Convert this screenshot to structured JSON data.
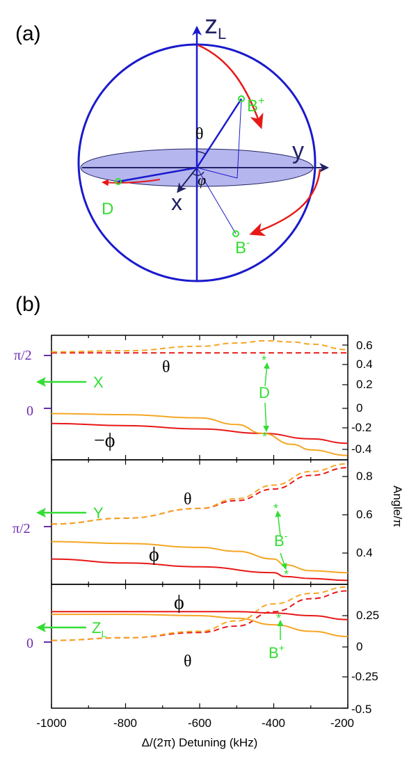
{
  "panel_a": {
    "label": "(a)",
    "axis_z": "z",
    "axis_z_sub": "L",
    "axis_y": "y",
    "axis_x": "x",
    "theta": "θ",
    "phi": "φ",
    "point_bplus": "B",
    "point_bplus_sup": "+",
    "point_bminus": "B",
    "point_bminus_sup": "-",
    "point_d": "D"
  },
  "panel_b": {
    "label": "(b)",
    "xlabel": "Δ/(2π)  Detuning  (kHz)",
    "ylabel_right": "Angle/π",
    "colors": {
      "red": "#e81818",
      "orange": "#f5a623",
      "green": "#33dd33",
      "purple": "#6a2ab0"
    },
    "sub1": {
      "left_pi2": "π/2",
      "left_zero": "0",
      "arrow_label": "X",
      "theta_label": "θ",
      "phi_label": "−ϕ",
      "point_label": "D",
      "right_ticks": [
        "0.6",
        "0.4",
        "0.2",
        "0",
        "-0.2",
        "-0.4"
      ]
    },
    "sub2": {
      "left_pi2": "π/2",
      "arrow_label": "Y",
      "theta_label": "θ",
      "phi_label": "ϕ",
      "point_label": "B",
      "point_label_sup": "-",
      "right_ticks": [
        "0.8",
        "0.6",
        "0.4"
      ]
    },
    "sub3": {
      "left_zero": "0",
      "arrow_label": "Z",
      "arrow_label_sub": "L",
      "theta_label": "θ",
      "phi_label": "ϕ",
      "point_label": "B",
      "point_label_sup": "+",
      "right_ticks": [
        "0.25",
        "0",
        "-0.25",
        "-0.5"
      ]
    },
    "x_ticks": [
      "-1000",
      "-800",
      "-600",
      "-400",
      "-200"
    ]
  },
  "chart_data": [
    {
      "type": "line",
      "xlim": [
        -1000,
        -200
      ],
      "ylim": [
        -0.45,
        0.68
      ],
      "series": [
        {
          "style": "red-dashed",
          "x": [
            -1000,
            -200
          ],
          "y": [
            0.52,
            0.52
          ]
        },
        {
          "style": "orange-dashed",
          "x": [
            -1000,
            -800,
            -600,
            -500,
            -420,
            -350,
            -300,
            -200
          ],
          "y": [
            0.53,
            0.54,
            0.58,
            0.61,
            0.63,
            0.62,
            0.6,
            0.55
          ]
        },
        {
          "style": "red-solid",
          "x": [
            -1000,
            -800,
            -600,
            -430,
            -300,
            -200
          ],
          "y": [
            -0.12,
            -0.14,
            -0.17,
            -0.21,
            -0.26,
            -0.3
          ]
        },
        {
          "style": "orange-solid",
          "x": [
            -1000,
            -800,
            -600,
            -500,
            -430,
            -350,
            -300,
            -200
          ],
          "y": [
            -0.03,
            -0.04,
            -0.07,
            -0.13,
            -0.21,
            -0.31,
            -0.36,
            -0.41
          ]
        }
      ]
    },
    {
      "type": "line",
      "xlim": [
        -1000,
        -200
      ],
      "ylim": [
        0.24,
        0.88
      ],
      "series": [
        {
          "style": "red-dashed",
          "x": [
            -1000,
            -800,
            -600,
            -500,
            -400,
            -300,
            -200
          ],
          "y": [
            0.55,
            0.58,
            0.63,
            0.67,
            0.73,
            0.8,
            0.84
          ]
        },
        {
          "style": "orange-dashed",
          "x": [
            -1000,
            -800,
            -600,
            -500,
            -400,
            -300,
            -200
          ],
          "y": [
            0.55,
            0.58,
            0.63,
            0.68,
            0.75,
            0.82,
            0.86
          ]
        },
        {
          "style": "red-solid",
          "x": [
            -1000,
            -800,
            -600,
            -400,
            -370,
            -300,
            -200
          ],
          "y": [
            0.37,
            0.35,
            0.33,
            0.3,
            0.28,
            0.27,
            0.26
          ]
        },
        {
          "style": "orange-solid",
          "x": [
            -1000,
            -800,
            -600,
            -500,
            -400,
            -370,
            -300,
            -200
          ],
          "y": [
            0.46,
            0.45,
            0.43,
            0.41,
            0.37,
            0.34,
            0.31,
            0.3
          ]
        }
      ]
    },
    {
      "type": "line",
      "xlim": [
        -1000,
        -200
      ],
      "ylim": [
        -0.5,
        0.45
      ],
      "series": [
        {
          "style": "red-dashed",
          "x": [
            -1000,
            -800,
            -600,
            -500,
            -400,
            -300,
            -200
          ],
          "y": [
            0.02,
            0.04,
            0.08,
            0.13,
            0.24,
            0.34,
            0.4
          ]
        },
        {
          "style": "orange-dashed",
          "x": [
            -1000,
            -800,
            -600,
            -500,
            -400,
            -300,
            -200
          ],
          "y": [
            0.02,
            0.04,
            0.09,
            0.17,
            0.3,
            0.38,
            0.43
          ]
        },
        {
          "style": "red-solid",
          "x": [
            -1000,
            -800,
            -600,
            -500,
            -400,
            -300,
            -200
          ],
          "y": [
            0.24,
            0.24,
            0.24,
            0.24,
            0.23,
            0.21,
            0.18
          ]
        },
        {
          "style": "orange-solid",
          "x": [
            -1000,
            -800,
            -600,
            -500,
            -400,
            -300,
            -200
          ],
          "y": [
            0.22,
            0.22,
            0.21,
            0.19,
            0.14,
            0.09,
            0.05
          ]
        }
      ]
    }
  ]
}
